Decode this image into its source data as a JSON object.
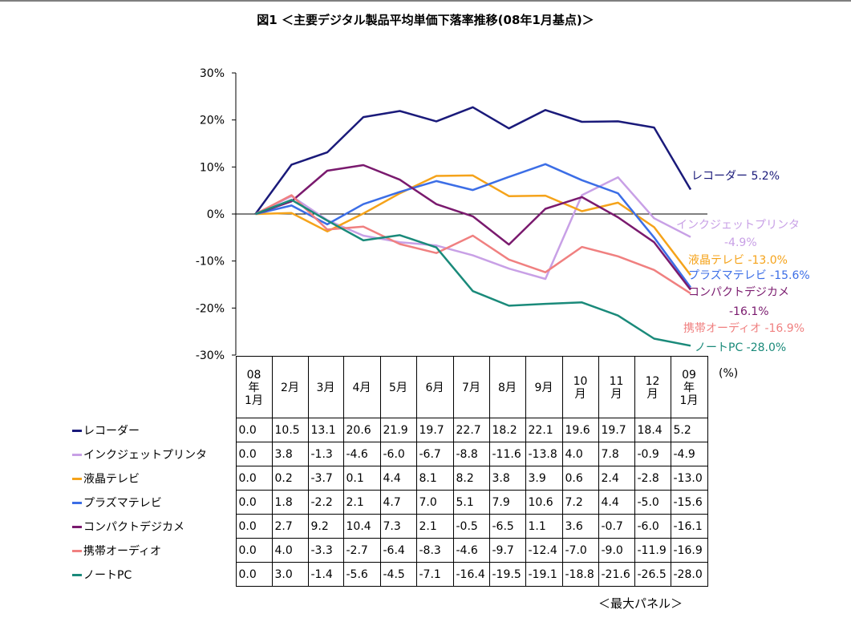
{
  "title": "図1 ＜主要デジタル製品平均単価下落率推移(08年1月基点)＞",
  "unit_label": "(%)",
  "source_label": "＜最大パネル＞",
  "chart_data": {
    "type": "line",
    "title": "図1 ＜主要デジタル製品平均単価下落率推移(08年1月基点)＞",
    "ylim": [
      -30,
      30
    ],
    "yticks": [
      30,
      20,
      10,
      0,
      -10,
      -20,
      -30
    ],
    "ytick_labels": [
      "30%",
      "20%",
      "10%",
      "0%",
      "-10%",
      "-20%",
      "-30%"
    ],
    "categories": [
      "08年1月",
      "2月",
      "3月",
      "4月",
      "5月",
      "6月",
      "7月",
      "8月",
      "9月",
      "10月",
      "11月",
      "12月",
      "09年1月"
    ],
    "category_lines": [
      [
        "08",
        "年",
        "1月"
      ],
      [
        "2月"
      ],
      [
        "3月"
      ],
      [
        "4月"
      ],
      [
        "5月"
      ],
      [
        "6月"
      ],
      [
        "7月"
      ],
      [
        "8月"
      ],
      [
        "9月"
      ],
      [
        "10",
        "月"
      ],
      [
        "11",
        "月"
      ],
      [
        "12",
        "月"
      ],
      [
        "09",
        "年",
        "1月"
      ]
    ],
    "legend_position": "table-below",
    "grid": false,
    "series": [
      {
        "name": "レコーダー",
        "color": "#1a1a7a",
        "end_label": "レコーダー 5.2%",
        "values": [
          "0.0",
          "10.5",
          "13.1",
          "20.6",
          "21.9",
          "19.7",
          "22.7",
          "18.2",
          "22.1",
          "19.6",
          "19.7",
          "18.4",
          "5.2"
        ]
      },
      {
        "name": "インクジェットプリンタ",
        "color": "#c8a0e6",
        "end_label": "インクジェットプリンタ",
        "end_label2": "-4.9%",
        "values": [
          "0.0",
          "3.8",
          "-1.3",
          "-4.6",
          "-6.0",
          "-6.7",
          "-8.8",
          "-11.6",
          "-13.8",
          "4.0",
          "7.8",
          "-0.9",
          "-4.9"
        ]
      },
      {
        "name": "液晶テレビ",
        "color": "#f5a31a",
        "end_label": "液晶テレビ -13.0%",
        "values": [
          "0.0",
          "0.2",
          "-3.7",
          "0.1",
          "4.4",
          "8.1",
          "8.2",
          "3.8",
          "3.9",
          "0.6",
          "2.4",
          "-2.8",
          "-13.0"
        ]
      },
      {
        "name": "プラズマテレビ",
        "color": "#3c6ee6",
        "end_label": "プラズマテレビ -15.6%",
        "values": [
          "0.0",
          "1.8",
          "-2.2",
          "2.1",
          "4.7",
          "7.0",
          "5.1",
          "7.9",
          "10.6",
          "7.2",
          "4.4",
          "-5.0",
          "-15.6"
        ]
      },
      {
        "name": "コンパクトデジカメ",
        "color": "#7a1a6e",
        "end_label": "コンパクトデジカメ",
        "end_label2": "-16.1%",
        "values": [
          "0.0",
          "2.7",
          "9.2",
          "10.4",
          "7.3",
          "2.1",
          "-0.5",
          "-6.5",
          "1.1",
          "3.6",
          "-0.7",
          "-6.0",
          "-16.1"
        ]
      },
      {
        "name": "携帯オーディオ",
        "color": "#f08080",
        "end_label": "携帯オーディオ -16.9%",
        "values": [
          "0.0",
          "4.0",
          "-3.3",
          "-2.7",
          "-6.4",
          "-8.3",
          "-4.6",
          "-9.7",
          "-12.4",
          "-7.0",
          "-9.0",
          "-11.9",
          "-16.9"
        ]
      },
      {
        "name": "ノートPC",
        "color": "#1a8a7a",
        "end_label": "ノートPC -28.0%",
        "values": [
          "0.0",
          "3.0",
          "-1.4",
          "-5.6",
          "-4.5",
          "-7.1",
          "-16.4",
          "-19.5",
          "-19.1",
          "-18.8",
          "-21.6",
          "-26.5",
          "-28.0"
        ]
      }
    ]
  }
}
